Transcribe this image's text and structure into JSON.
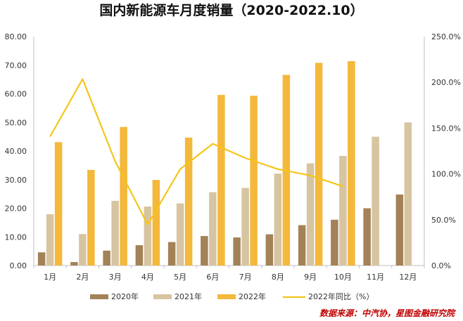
{
  "chart_data": {
    "type": "bar+line",
    "title": "国内新能源车月度销量（2020-2022.10）",
    "categories": [
      "1月",
      "2月",
      "3月",
      "4月",
      "5月",
      "6月",
      "7月",
      "8月",
      "9月",
      "10月",
      "11月",
      "12月"
    ],
    "series": [
      {
        "name": "2020年",
        "kind": "bar",
        "axis": "left",
        "color": "#a38257",
        "values": [
          4.6,
          1.2,
          5.2,
          7.1,
          8.2,
          10.3,
          9.8,
          10.9,
          14.1,
          16.0,
          20.0,
          24.8
        ]
      },
      {
        "name": "2021年",
        "kind": "bar",
        "axis": "left",
        "color": "#d7c4a0",
        "values": [
          17.9,
          11.0,
          22.6,
          20.6,
          21.7,
          25.6,
          27.1,
          32.1,
          35.7,
          38.3,
          45.0,
          50.0
        ]
      },
      {
        "name": "2022年",
        "kind": "bar",
        "axis": "left",
        "color": "#f4b83a",
        "values": [
          43.1,
          33.4,
          48.4,
          29.9,
          44.7,
          59.6,
          59.3,
          66.6,
          70.8,
          71.4,
          null,
          null
        ]
      },
      {
        "name": "2022年同比（%）",
        "kind": "line",
        "axis": "right",
        "color": "#f5c518",
        "values": [
          140.7,
          203.5,
          113.9,
          44.6,
          105.2,
          133.0,
          117.3,
          105.2,
          98.3,
          86.4,
          null,
          null
        ]
      }
    ],
    "y_left": {
      "min": 0,
      "max": 80,
      "step": 10,
      "tick_labels": [
        "0.00",
        "10.00",
        "20.00",
        "30.00",
        "40.00",
        "50.00",
        "60.00",
        "70.00",
        "80.00"
      ]
    },
    "y_right": {
      "min": 0,
      "max": 250,
      "step": 50,
      "tick_labels": [
        "0.0%",
        "50.0%",
        "100.0%",
        "150.0%",
        "200.0%",
        "250.0%"
      ]
    },
    "grid": false,
    "legend_position": "bottom",
    "source": "数据来源：中汽协，星图金融研究院"
  }
}
